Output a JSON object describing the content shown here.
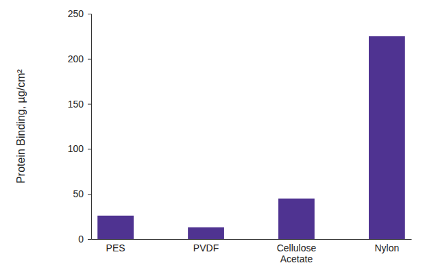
{
  "chart_data": {
    "type": "bar",
    "y_label": "Protein Binding, µg/cm²",
    "categories": [
      "PES",
      "PVDF",
      "Cellulose Acetate",
      "Nylon"
    ],
    "values": [
      26,
      13,
      45,
      225
    ],
    "color": "#4f3391",
    "ylim": [
      0,
      250
    ],
    "yticks": [
      0,
      50,
      100,
      150,
      200,
      250
    ],
    "grid": false
  }
}
